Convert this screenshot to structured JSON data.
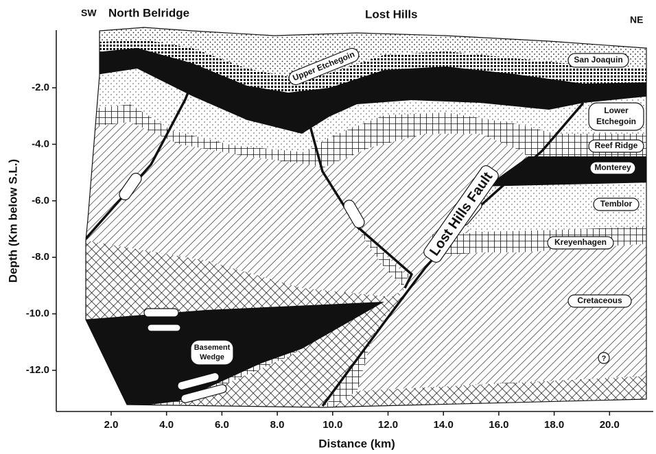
{
  "header": {
    "left_direction": "SW",
    "left_location": "North Belridge",
    "center_location": "Lost Hills",
    "right_direction": "NE"
  },
  "axes": {
    "x_label": "Distance (km)",
    "y_label": "Depth (Km below S.L.)",
    "x_ticks": [
      "2.0",
      "4.0",
      "6.0",
      "8.0",
      "10.0",
      "12.0",
      "14.0",
      "16.0",
      "18.0",
      "20.0"
    ],
    "y_ticks": [
      "-2.0",
      "-4.0",
      "-6.0",
      "-8.0",
      "-10.0",
      "-12.0"
    ]
  },
  "units": {
    "san_joaquin": "San Joaquin",
    "upper_etchegoin": "Upper Etchegoin",
    "lower_etchegoin_1": "Lower",
    "lower_etchegoin_2": "Etchegoin",
    "reef_ridge": "Reef Ridge",
    "monterey": "Monterey",
    "temblor": "Temblor",
    "kreyenhagen": "Kreyenhagen",
    "cretaceous": "Cretaceous",
    "basement_1": "Basement",
    "basement_2": "Wedge"
  },
  "fault": "Lost Hills Fault",
  "unknown": "?"
}
